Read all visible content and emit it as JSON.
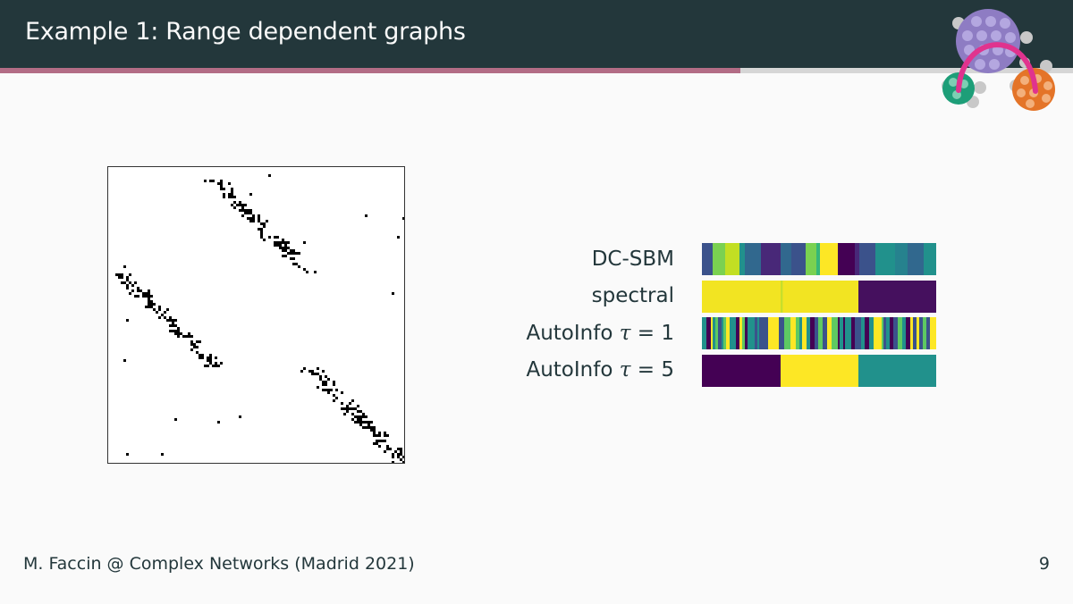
{
  "slide": {
    "title": "Example 1: Range dependent graphs",
    "progress_fraction": 0.69
  },
  "partitions": [
    {
      "label": "DC-SBM",
      "tau": null
    },
    {
      "label": "spectral",
      "tau": null
    },
    {
      "label": "AutoInfo",
      "tau": "1"
    },
    {
      "label": "AutoInfo",
      "tau": "5"
    }
  ],
  "footer": {
    "text": "M. Faccin @ Complex Networks (Madrid 2021)",
    "page_number": "9"
  },
  "colors": {
    "header_bg": "#23373b",
    "progress": "#b26c85",
    "viridis_dark": "#440154",
    "viridis_teal": "#21918c",
    "viridis_yellow": "#fde725"
  }
}
